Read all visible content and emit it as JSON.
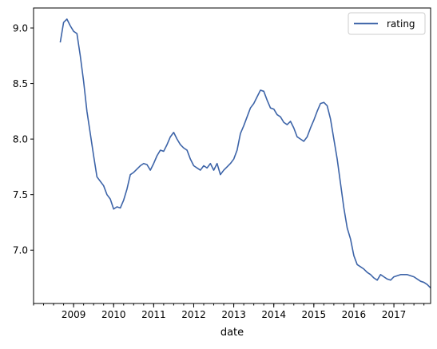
{
  "chart_data": {
    "type": "line",
    "xlabel": "date",
    "ylabel": "",
    "legend_position": "top-right",
    "grid": false,
    "x_tick_labels": [
      "2009",
      "2010",
      "2011",
      "2012",
      "2013",
      "2014",
      "2015",
      "2016",
      "2017"
    ],
    "y_tick_values": [
      7.0,
      7.5,
      8.0,
      8.5,
      9.0
    ],
    "y_tick_labels": [
      "7.0",
      "7.5",
      "8.0",
      "8.5",
      "9.0"
    ],
    "xlim": [
      "2008-01",
      "2017-12"
    ],
    "ylim": [
      6.52,
      9.18
    ],
    "series": [
      {
        "name": "rating",
        "color": "#3d64a8",
        "points": [
          [
            "2008-09",
            8.87
          ],
          [
            "2008-10",
            9.05
          ],
          [
            "2008-11",
            9.08
          ],
          [
            "2008-12",
            9.02
          ],
          [
            "2009-01",
            8.97
          ],
          [
            "2009-02",
            8.95
          ],
          [
            "2009-03",
            8.75
          ],
          [
            "2009-04",
            8.52
          ],
          [
            "2009-05",
            8.25
          ],
          [
            "2009-06",
            8.05
          ],
          [
            "2009-07",
            7.85
          ],
          [
            "2009-08",
            7.66
          ],
          [
            "2009-09",
            7.62
          ],
          [
            "2009-10",
            7.58
          ],
          [
            "2009-11",
            7.5
          ],
          [
            "2009-12",
            7.46
          ],
          [
            "2010-01",
            7.37
          ],
          [
            "2010-02",
            7.39
          ],
          [
            "2010-03",
            7.38
          ],
          [
            "2010-04",
            7.45
          ],
          [
            "2010-05",
            7.55
          ],
          [
            "2010-06",
            7.68
          ],
          [
            "2010-07",
            7.7
          ],
          [
            "2010-08",
            7.73
          ],
          [
            "2010-09",
            7.76
          ],
          [
            "2010-10",
            7.78
          ],
          [
            "2010-11",
            7.77
          ],
          [
            "2010-12",
            7.72
          ],
          [
            "2011-01",
            7.78
          ],
          [
            "2011-02",
            7.85
          ],
          [
            "2011-03",
            7.9
          ],
          [
            "2011-04",
            7.89
          ],
          [
            "2011-05",
            7.95
          ],
          [
            "2011-06",
            8.02
          ],
          [
            "2011-07",
            8.06
          ],
          [
            "2011-08",
            8.0
          ],
          [
            "2011-09",
            7.95
          ],
          [
            "2011-10",
            7.92
          ],
          [
            "2011-11",
            7.9
          ],
          [
            "2011-12",
            7.82
          ],
          [
            "2012-01",
            7.76
          ],
          [
            "2012-02",
            7.74
          ],
          [
            "2012-03",
            7.72
          ],
          [
            "2012-04",
            7.76
          ],
          [
            "2012-05",
            7.74
          ],
          [
            "2012-06",
            7.78
          ],
          [
            "2012-07",
            7.72
          ],
          [
            "2012-08",
            7.78
          ],
          [
            "2012-09",
            7.68
          ],
          [
            "2012-10",
            7.72
          ],
          [
            "2012-11",
            7.75
          ],
          [
            "2012-12",
            7.78
          ],
          [
            "2013-01",
            7.82
          ],
          [
            "2013-02",
            7.9
          ],
          [
            "2013-03",
            8.05
          ],
          [
            "2013-04",
            8.12
          ],
          [
            "2013-05",
            8.2
          ],
          [
            "2013-06",
            8.28
          ],
          [
            "2013-07",
            8.32
          ],
          [
            "2013-08",
            8.38
          ],
          [
            "2013-09",
            8.44
          ],
          [
            "2013-10",
            8.43
          ],
          [
            "2013-11",
            8.35
          ],
          [
            "2013-12",
            8.28
          ],
          [
            "2014-01",
            8.27
          ],
          [
            "2014-02",
            8.22
          ],
          [
            "2014-03",
            8.2
          ],
          [
            "2014-04",
            8.15
          ],
          [
            "2014-05",
            8.13
          ],
          [
            "2014-06",
            8.16
          ],
          [
            "2014-07",
            8.1
          ],
          [
            "2014-08",
            8.02
          ],
          [
            "2014-09",
            8.0
          ],
          [
            "2014-10",
            7.98
          ],
          [
            "2014-11",
            8.02
          ],
          [
            "2014-12",
            8.1
          ],
          [
            "2015-01",
            8.17
          ],
          [
            "2015-02",
            8.25
          ],
          [
            "2015-03",
            8.32
          ],
          [
            "2015-04",
            8.33
          ],
          [
            "2015-05",
            8.3
          ],
          [
            "2015-06",
            8.18
          ],
          [
            "2015-07",
            8.0
          ],
          [
            "2015-08",
            7.82
          ],
          [
            "2015-09",
            7.6
          ],
          [
            "2015-10",
            7.38
          ],
          [
            "2015-11",
            7.2
          ],
          [
            "2015-12",
            7.1
          ],
          [
            "2016-01",
            6.95
          ],
          [
            "2016-02",
            6.87
          ],
          [
            "2016-03",
            6.85
          ],
          [
            "2016-04",
            6.83
          ],
          [
            "2016-05",
            6.8
          ],
          [
            "2016-06",
            6.78
          ],
          [
            "2016-07",
            6.75
          ],
          [
            "2016-08",
            6.73
          ],
          [
            "2016-09",
            6.78
          ],
          [
            "2016-10",
            6.76
          ],
          [
            "2016-11",
            6.74
          ],
          [
            "2016-12",
            6.73
          ],
          [
            "2017-01",
            6.76
          ],
          [
            "2017-02",
            6.77
          ],
          [
            "2017-03",
            6.78
          ],
          [
            "2017-04",
            6.78
          ],
          [
            "2017-05",
            6.78
          ],
          [
            "2017-06",
            6.77
          ],
          [
            "2017-07",
            6.76
          ],
          [
            "2017-08",
            6.74
          ],
          [
            "2017-09",
            6.72
          ],
          [
            "2017-10",
            6.71
          ],
          [
            "2017-11",
            6.69
          ],
          [
            "2017-12",
            6.66
          ]
        ]
      }
    ]
  }
}
